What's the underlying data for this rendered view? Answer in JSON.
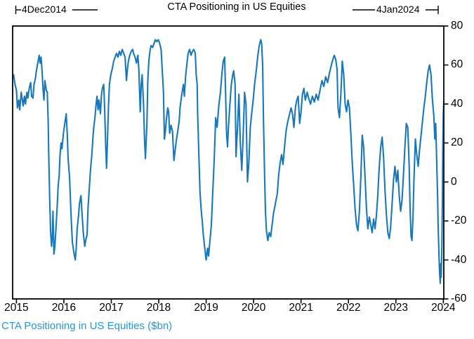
{
  "title": "CTA Positioning in US Equities",
  "annotations": {
    "start_label": "4Dec2014",
    "end_label": "4Jan2024"
  },
  "footer": {
    "label": "CTA Positioning in US Equities ($bn)"
  },
  "colors": {
    "line": "#1878B9",
    "footer_text": "#2398DB",
    "axis": "#000000"
  },
  "chart_data": {
    "type": "line",
    "title": "CTA Positioning in US Equities",
    "series_name": "CTA Positioning in US Equities ($bn)",
    "x_start_label": "4Dec2014",
    "x_end_label": "4Jan2024",
    "x_domain": [
      2014.92,
      2024.01
    ],
    "ylim": [
      -60,
      80
    ],
    "yticks": [
      80,
      60,
      40,
      20,
      0,
      -20,
      -40,
      -60
    ],
    "xticks": [
      2015,
      2016,
      2017,
      2018,
      2019,
      2020,
      2021,
      2022,
      2023,
      2024
    ],
    "grid": false,
    "legend_position": "none",
    "points": [
      [
        2014.92,
        53
      ],
      [
        2014.94,
        55
      ],
      [
        2014.97,
        50
      ],
      [
        2015.0,
        47
      ],
      [
        2015.02,
        38
      ],
      [
        2015.05,
        42
      ],
      [
        2015.07,
        37
      ],
      [
        2015.1,
        46
      ],
      [
        2015.12,
        43
      ],
      [
        2015.14,
        39
      ],
      [
        2015.17,
        44
      ],
      [
        2015.19,
        40
      ],
      [
        2015.22,
        46
      ],
      [
        2015.24,
        43
      ],
      [
        2015.27,
        48
      ],
      [
        2015.3,
        51
      ],
      [
        2015.32,
        44
      ],
      [
        2015.35,
        43
      ],
      [
        2015.37,
        50
      ],
      [
        2015.4,
        53
      ],
      [
        2015.42,
        57
      ],
      [
        2015.45,
        61
      ],
      [
        2015.48,
        65
      ],
      [
        2015.5,
        61
      ],
      [
        2015.52,
        64
      ],
      [
        2015.54,
        57
      ],
      [
        2015.56,
        48
      ],
      [
        2015.58,
        42
      ],
      [
        2015.6,
        52
      ],
      [
        2015.63,
        47
      ],
      [
        2015.65,
        46
      ],
      [
        2015.67,
        30
      ],
      [
        2015.68,
        16
      ],
      [
        2015.7,
        -8
      ],
      [
        2015.72,
        -25
      ],
      [
        2015.74,
        -33
      ],
      [
        2015.76,
        -27
      ],
      [
        2015.77,
        -15
      ],
      [
        2015.79,
        -37
      ],
      [
        2015.81,
        -33
      ],
      [
        2015.83,
        -25
      ],
      [
        2015.86,
        -12
      ],
      [
        2015.88,
        -2
      ],
      [
        2015.9,
        3
      ],
      [
        2015.92,
        14
      ],
      [
        2015.94,
        20
      ],
      [
        2015.96,
        17
      ],
      [
        2015.99,
        25
      ],
      [
        2016.02,
        30
      ],
      [
        2016.05,
        35
      ],
      [
        2016.07,
        25
      ],
      [
        2016.09,
        12
      ],
      [
        2016.12,
        2
      ],
      [
        2016.14,
        -10
      ],
      [
        2016.16,
        -22
      ],
      [
        2016.18,
        -31
      ],
      [
        2016.21,
        -36
      ],
      [
        2016.24,
        -40
      ],
      [
        2016.26,
        -34
      ],
      [
        2016.28,
        -24
      ],
      [
        2016.31,
        -17
      ],
      [
        2016.33,
        -11
      ],
      [
        2016.36,
        -7
      ],
      [
        2016.38,
        -15
      ],
      [
        2016.41,
        -26
      ],
      [
        2016.44,
        -33
      ],
      [
        2016.46,
        -30
      ],
      [
        2016.49,
        -27
      ],
      [
        2016.51,
        -13
      ],
      [
        2016.54,
        -2
      ],
      [
        2016.56,
        6
      ],
      [
        2016.59,
        14
      ],
      [
        2016.61,
        22
      ],
      [
        2016.63,
        28
      ],
      [
        2016.65,
        32
      ],
      [
        2016.68,
        40
      ],
      [
        2016.7,
        44
      ],
      [
        2016.72,
        37
      ],
      [
        2016.74,
        42
      ],
      [
        2016.77,
        35
      ],
      [
        2016.79,
        44
      ],
      [
        2016.81,
        48
      ],
      [
        2016.84,
        50
      ],
      [
        2016.86,
        38
      ],
      [
        2016.88,
        20
      ],
      [
        2016.9,
        7
      ],
      [
        2016.92,
        22
      ],
      [
        2016.94,
        38
      ],
      [
        2016.96,
        50
      ],
      [
        2016.99,
        55
      ],
      [
        2017.02,
        58
      ],
      [
        2017.05,
        62
      ],
      [
        2017.08,
        64
      ],
      [
        2017.11,
        66
      ],
      [
        2017.14,
        64
      ],
      [
        2017.17,
        67
      ],
      [
        2017.2,
        65
      ],
      [
        2017.23,
        68
      ],
      [
        2017.26,
        66
      ],
      [
        2017.29,
        64
      ],
      [
        2017.32,
        52
      ],
      [
        2017.34,
        58
      ],
      [
        2017.36,
        62
      ],
      [
        2017.39,
        65
      ],
      [
        2017.42,
        67
      ],
      [
        2017.45,
        68
      ],
      [
        2017.47,
        66
      ],
      [
        2017.5,
        64
      ],
      [
        2017.53,
        61
      ],
      [
        2017.56,
        65
      ],
      [
        2017.58,
        58
      ],
      [
        2017.61,
        36
      ],
      [
        2017.63,
        50
      ],
      [
        2017.65,
        55
      ],
      [
        2017.68,
        40
      ],
      [
        2017.7,
        22
      ],
      [
        2017.72,
        12
      ],
      [
        2017.75,
        30
      ],
      [
        2017.77,
        52
      ],
      [
        2017.79,
        62
      ],
      [
        2017.82,
        68
      ],
      [
        2017.84,
        70
      ],
      [
        2017.87,
        69
      ],
      [
        2017.9,
        71
      ],
      [
        2017.93,
        73
      ],
      [
        2017.96,
        72
      ],
      [
        2017.99,
        73
      ],
      [
        2018.02,
        71
      ],
      [
        2018.05,
        68
      ],
      [
        2018.08,
        55
      ],
      [
        2018.1,
        46
      ],
      [
        2018.12,
        22
      ],
      [
        2018.14,
        26
      ],
      [
        2018.16,
        32
      ],
      [
        2018.19,
        38
      ],
      [
        2018.21,
        36
      ],
      [
        2018.23,
        25
      ],
      [
        2018.26,
        29
      ],
      [
        2018.29,
        26
      ],
      [
        2018.32,
        11
      ],
      [
        2018.34,
        15
      ],
      [
        2018.37,
        21
      ],
      [
        2018.4,
        26
      ],
      [
        2018.43,
        31
      ],
      [
        2018.45,
        38
      ],
      [
        2018.48,
        44
      ],
      [
        2018.5,
        47
      ],
      [
        2018.52,
        50
      ],
      [
        2018.54,
        44
      ],
      [
        2018.57,
        55
      ],
      [
        2018.6,
        62
      ],
      [
        2018.62,
        66
      ],
      [
        2018.65,
        68
      ],
      [
        2018.68,
        65
      ],
      [
        2018.71,
        67
      ],
      [
        2018.74,
        68
      ],
      [
        2018.77,
        66
      ],
      [
        2018.79,
        55
      ],
      [
        2018.81,
        50
      ],
      [
        2018.82,
        36
      ],
      [
        2018.85,
        10
      ],
      [
        2018.87,
        -5
      ],
      [
        2018.89,
        -13
      ],
      [
        2018.92,
        -21
      ],
      [
        2018.94,
        -27
      ],
      [
        2018.97,
        -34
      ],
      [
        2019.0,
        -40
      ],
      [
        2019.03,
        -34
      ],
      [
        2019.05,
        -38
      ],
      [
        2019.08,
        -30
      ],
      [
        2019.11,
        -22
      ],
      [
        2019.14,
        -5
      ],
      [
        2019.17,
        12
      ],
      [
        2019.2,
        33
      ],
      [
        2019.23,
        28
      ],
      [
        2019.27,
        40
      ],
      [
        2019.3,
        46
      ],
      [
        2019.33,
        55
      ],
      [
        2019.36,
        62
      ],
      [
        2019.39,
        64
      ],
      [
        2019.41,
        45
      ],
      [
        2019.43,
        25
      ],
      [
        2019.45,
        18
      ],
      [
        2019.47,
        28
      ],
      [
        2019.5,
        40
      ],
      [
        2019.53,
        50
      ],
      [
        2019.56,
        55
      ],
      [
        2019.58,
        57
      ],
      [
        2019.61,
        50
      ],
      [
        2019.63,
        13
      ],
      [
        2019.66,
        28
      ],
      [
        2019.69,
        45
      ],
      [
        2019.72,
        20
      ],
      [
        2019.75,
        6
      ],
      [
        2019.78,
        24
      ],
      [
        2019.81,
        46
      ],
      [
        2019.84,
        40
      ],
      [
        2019.87,
        0
      ],
      [
        2019.9,
        10
      ],
      [
        2019.93,
        28
      ],
      [
        2019.96,
        35
      ],
      [
        2019.99,
        42
      ],
      [
        2020.02,
        50
      ],
      [
        2020.06,
        58
      ],
      [
        2020.09,
        65
      ],
      [
        2020.12,
        70
      ],
      [
        2020.15,
        73
      ],
      [
        2020.17,
        71
      ],
      [
        2020.19,
        60
      ],
      [
        2020.21,
        30
      ],
      [
        2020.23,
        5
      ],
      [
        2020.25,
        -15
      ],
      [
        2020.27,
        -25
      ],
      [
        2020.3,
        -30
      ],
      [
        2020.33,
        -26
      ],
      [
        2020.36,
        -28
      ],
      [
        2020.39,
        -22
      ],
      [
        2020.42,
        -16
      ],
      [
        2020.46,
        -11
      ],
      [
        2020.5,
        -6
      ],
      [
        2020.53,
        4
      ],
      [
        2020.56,
        10
      ],
      [
        2020.59,
        14
      ],
      [
        2020.62,
        9
      ],
      [
        2020.66,
        20
      ],
      [
        2020.69,
        27
      ],
      [
        2020.72,
        31
      ],
      [
        2020.75,
        34
      ],
      [
        2020.79,
        38
      ],
      [
        2020.82,
        35
      ],
      [
        2020.85,
        28
      ],
      [
        2020.88,
        38
      ],
      [
        2020.91,
        42
      ],
      [
        2020.94,
        44
      ],
      [
        2020.97,
        30
      ],
      [
        2021.0,
        36
      ],
      [
        2021.03,
        45
      ],
      [
        2021.06,
        48
      ],
      [
        2021.09,
        42
      ],
      [
        2021.13,
        46
      ],
      [
        2021.16,
        43
      ],
      [
        2021.2,
        40
      ],
      [
        2021.24,
        44
      ],
      [
        2021.28,
        41
      ],
      [
        2021.32,
        45
      ],
      [
        2021.36,
        42
      ],
      [
        2021.4,
        47
      ],
      [
        2021.44,
        52
      ],
      [
        2021.48,
        49
      ],
      [
        2021.52,
        54
      ],
      [
        2021.56,
        51
      ],
      [
        2021.6,
        56
      ],
      [
        2021.63,
        59
      ],
      [
        2021.66,
        62
      ],
      [
        2021.7,
        65
      ],
      [
        2021.73,
        63
      ],
      [
        2021.76,
        58
      ],
      [
        2021.78,
        38
      ],
      [
        2021.81,
        33
      ],
      [
        2021.84,
        45
      ],
      [
        2021.87,
        62
      ],
      [
        2021.9,
        55
      ],
      [
        2021.93,
        40
      ],
      [
        2021.96,
        36
      ],
      [
        2021.99,
        42
      ],
      [
        2022.02,
        38
      ],
      [
        2022.05,
        25
      ],
      [
        2022.08,
        10
      ],
      [
        2022.11,
        -2
      ],
      [
        2022.14,
        -14
      ],
      [
        2022.17,
        -22
      ],
      [
        2022.2,
        -25
      ],
      [
        2022.23,
        -15
      ],
      [
        2022.26,
        2
      ],
      [
        2022.29,
        24
      ],
      [
        2022.32,
        18
      ],
      [
        2022.35,
        2
      ],
      [
        2022.38,
        -14
      ],
      [
        2022.41,
        -24
      ],
      [
        2022.44,
        -18
      ],
      [
        2022.47,
        -22
      ],
      [
        2022.5,
        -26
      ],
      [
        2022.53,
        -19
      ],
      [
        2022.56,
        -24
      ],
      [
        2022.59,
        -17
      ],
      [
        2022.62,
        -6
      ],
      [
        2022.65,
        8
      ],
      [
        2022.68,
        18
      ],
      [
        2022.71,
        23
      ],
      [
        2022.74,
        13
      ],
      [
        2022.77,
        -4
      ],
      [
        2022.8,
        -17
      ],
      [
        2022.83,
        -26
      ],
      [
        2022.86,
        -29
      ],
      [
        2022.89,
        -23
      ],
      [
        2022.92,
        -11
      ],
      [
        2022.95,
        1
      ],
      [
        2022.98,
        8
      ],
      [
        2023.01,
        0
      ],
      [
        2023.04,
        6
      ],
      [
        2023.07,
        -7
      ],
      [
        2023.1,
        -15
      ],
      [
        2023.13,
        -9
      ],
      [
        2023.16,
        4
      ],
      [
        2023.19,
        18
      ],
      [
        2023.22,
        30
      ],
      [
        2023.25,
        28
      ],
      [
        2023.28,
        8
      ],
      [
        2023.3,
        -14
      ],
      [
        2023.32,
        -28
      ],
      [
        2023.34,
        -30
      ],
      [
        2023.36,
        -18
      ],
      [
        2023.38,
        0
      ],
      [
        2023.41,
        22
      ],
      [
        2023.44,
        14
      ],
      [
        2023.47,
        8
      ],
      [
        2023.5,
        17
      ],
      [
        2023.53,
        24
      ],
      [
        2023.56,
        31
      ],
      [
        2023.59,
        38
      ],
      [
        2023.62,
        44
      ],
      [
        2023.65,
        51
      ],
      [
        2023.68,
        57
      ],
      [
        2023.71,
        60
      ],
      [
        2023.74,
        55
      ],
      [
        2023.77,
        42
      ],
      [
        2023.8,
        34
      ],
      [
        2023.82,
        22
      ],
      [
        2023.84,
        30
      ],
      [
        2023.86,
        10
      ],
      [
        2023.88,
        -8
      ],
      [
        2023.89,
        -22
      ],
      [
        2023.91,
        -38
      ],
      [
        2023.92,
        -46
      ],
      [
        2023.935,
        -52
      ],
      [
        2023.945,
        -42
      ],
      [
        2023.955,
        -49
      ],
      [
        2023.97,
        -32
      ],
      [
        2023.98,
        -10
      ],
      [
        2023.99,
        18
      ],
      [
        2024.0,
        35
      ],
      [
        2024.01,
        41
      ]
    ]
  }
}
